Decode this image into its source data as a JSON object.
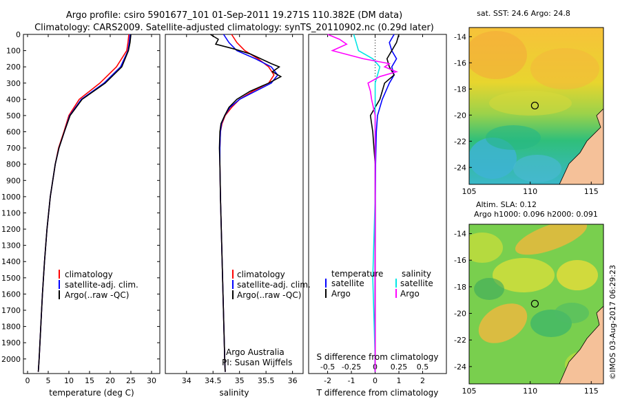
{
  "figure": {
    "title_line1": "Argo profile: csiro 5901677_101 01-Sep-2011 19.271S 110.382E (DM data)",
    "title_line2": "Climatology: CARS2009. Satellite-adjusted climatology: synTS_20110902.nc (0.29d later)",
    "credit": "©IMOS 03-Aug-2017 06:29:23",
    "institution": "Argo Australia",
    "pi": "PI: Susan Wijffels"
  },
  "colors": {
    "climatology": "#ff0000",
    "satellite": "#0000ff",
    "argo": "#000000",
    "sat_salinity": "#00e5e5",
    "argo_salinity": "#ff00ff",
    "land": "#f5c199"
  },
  "chart_data": [
    {
      "id": "temperature",
      "type": "line",
      "xlabel": "temperature (deg C)",
      "ylabel": "",
      "xlim": [
        -1,
        32
      ],
      "ylim": [
        2090,
        0
      ],
      "xticks": [
        0,
        5,
        10,
        15,
        20,
        25,
        30
      ],
      "yticks": [
        0,
        100,
        200,
        300,
        400,
        500,
        600,
        700,
        800,
        900,
        1000,
        1100,
        1200,
        1300,
        1400,
        1500,
        1600,
        1700,
        1800,
        1900,
        2000
      ],
      "legend": [
        "climatology",
        "satellite-adj. clim.",
        "Argo(..raw -QC)"
      ],
      "series": [
        {
          "name": "climatology",
          "depth": [
            0,
            50,
            100,
            200,
            300,
            400,
            500,
            600,
            700,
            800,
            1000,
            1200,
            1400,
            1600,
            1800,
            2000,
            2080
          ],
          "values": [
            24.5,
            24.3,
            24.0,
            21.5,
            17.5,
            12.5,
            10.0,
            8.8,
            7.5,
            6.7,
            5.5,
            4.7,
            4.1,
            3.6,
            3.2,
            2.8,
            2.6
          ]
        },
        {
          "name": "satellite-adj. clim.",
          "depth": [
            0,
            50,
            100,
            200,
            300,
            400,
            500,
            600,
            700,
            800,
            1000,
            1200,
            1400,
            1600,
            1800,
            2000,
            2080
          ],
          "values": [
            24.8,
            24.6,
            24.3,
            22.5,
            18.5,
            13.0,
            10.2,
            8.9,
            7.6,
            6.7,
            5.5,
            4.7,
            4.1,
            3.6,
            3.2,
            2.8,
            2.6
          ]
        },
        {
          "name": "Argo(..raw -QC)",
          "depth": [
            0,
            50,
            100,
            200,
            300,
            400,
            500,
            600,
            700,
            800,
            1000,
            1200,
            1400,
            1600,
            1800,
            2000,
            2080
          ],
          "values": [
            25.0,
            24.8,
            24.4,
            22.8,
            18.8,
            13.2,
            10.3,
            8.9,
            7.6,
            6.7,
            5.5,
            4.7,
            4.1,
            3.6,
            3.2,
            2.8,
            2.6
          ]
        }
      ]
    },
    {
      "id": "salinity",
      "type": "line",
      "xlabel": "salinity",
      "xlim": [
        33.6,
        36.2
      ],
      "ylim": [
        2090,
        0
      ],
      "xticks": [
        34,
        34.5,
        35,
        35.5,
        36
      ],
      "legend": [
        "climatology",
        "satellite-adj. clim.",
        "Argo(..raw -QC)"
      ],
      "series": [
        {
          "name": "climatology",
          "depth": [
            0,
            50,
            100,
            150,
            200,
            250,
            300,
            350,
            400,
            450,
            500,
            550,
            600,
            700,
            800,
            1000,
            1500,
            2000,
            2080
          ],
          "values": [
            34.85,
            34.95,
            35.1,
            35.35,
            35.55,
            35.65,
            35.55,
            35.25,
            35.0,
            34.85,
            34.73,
            34.67,
            34.64,
            34.63,
            34.63,
            34.64,
            34.68,
            34.72,
            34.73
          ]
        },
        {
          "name": "satellite-adj. clim.",
          "depth": [
            0,
            50,
            100,
            150,
            200,
            250,
            300,
            350,
            400,
            450,
            500,
            550,
            600,
            700,
            800,
            1000,
            1500,
            2000,
            2080
          ],
          "values": [
            34.7,
            34.8,
            34.95,
            35.3,
            35.6,
            35.72,
            35.6,
            35.3,
            35.0,
            34.82,
            34.72,
            34.66,
            34.64,
            34.63,
            34.63,
            34.64,
            34.68,
            34.72,
            34.73
          ]
        },
        {
          "name": "Argo(..raw -QC)",
          "depth": [
            0,
            30,
            60,
            90,
            120,
            150,
            180,
            200,
            230,
            260,
            300,
            350,
            400,
            450,
            500,
            550,
            600,
            700,
            800,
            1000,
            1500,
            2000,
            2080
          ],
          "values": [
            34.45,
            34.6,
            34.55,
            34.9,
            35.2,
            35.4,
            35.6,
            35.75,
            35.62,
            35.78,
            35.55,
            35.2,
            34.95,
            34.8,
            34.72,
            34.65,
            34.63,
            34.62,
            34.63,
            34.64,
            34.68,
            34.72,
            34.73
          ]
        }
      ]
    },
    {
      "id": "difference",
      "type": "line",
      "xlabel": "T difference from climatology",
      "xlabel_top": "S difference from climatology",
      "xlim": [
        -2.8,
        3.0
      ],
      "ylim": [
        2090,
        0
      ],
      "xticks": [
        -2,
        -1,
        0,
        1,
        2
      ],
      "s_tick_labels": [
        "-0.5",
        "-0.25",
        "0",
        "0.25",
        "0.5"
      ],
      "s_tick_positions": [
        -2,
        -1,
        0,
        1,
        2
      ],
      "legend": {
        "temperature_heading": "temperature",
        "salinity_heading": "salinity",
        "items": [
          "satellite",
          "Argo",
          "satellite",
          "Argo"
        ]
      },
      "series": [
        {
          "name": "T satellite",
          "depth": [
            0,
            50,
            100,
            150,
            200,
            250,
            300,
            400,
            500,
            600,
            800,
            1000,
            1500,
            2000,
            2080
          ],
          "values": [
            0.8,
            0.6,
            0.7,
            0.9,
            0.7,
            0.8,
            0.6,
            0.3,
            0.1,
            0.05,
            0.02,
            0.01,
            0.0,
            0.0,
            0.0
          ]
        },
        {
          "name": "T Argo",
          "depth": [
            0,
            50,
            100,
            150,
            200,
            250,
            300,
            400,
            500,
            600,
            700,
            800,
            1000,
            1500,
            2000,
            2080
          ],
          "values": [
            1.0,
            0.9,
            0.7,
            0.5,
            0.6,
            0.8,
            0.4,
            0.2,
            -0.2,
            -0.1,
            -0.05,
            0.0,
            0.0,
            0.0,
            0.0,
            0.0
          ]
        },
        {
          "name": "S satellite",
          "depth": [
            0,
            50,
            100,
            150,
            200,
            250,
            300,
            400,
            500,
            600,
            800,
            1000,
            1500,
            2000,
            2080
          ],
          "values": [
            -0.9,
            -0.8,
            -0.7,
            -0.1,
            0.2,
            0.1,
            0.0,
            0.0,
            0.0,
            0.0,
            0.0,
            0.0,
            -0.1,
            0.0,
            0.0
          ]
        },
        {
          "name": "S Argo",
          "depth": [
            0,
            30,
            60,
            100,
            150,
            180,
            200,
            230,
            260,
            300,
            350,
            400,
            500,
            600,
            800,
            1000,
            1500,
            2000,
            2080
          ],
          "values": [
            -2.0,
            -1.5,
            -1.2,
            -1.8,
            -0.5,
            0.6,
            0.4,
            0.9,
            0.2,
            -0.3,
            -0.2,
            -0.15,
            0.0,
            0.0,
            0.0,
            0.0,
            0.0,
            0.0,
            0.0
          ]
        }
      ]
    },
    {
      "id": "sst_map",
      "type": "heatmap",
      "title": "sat. SST: 24.6 Argo: 24.8",
      "xticks": [
        105,
        110,
        115
      ],
      "yticks": [
        -14,
        -16,
        -18,
        -20,
        -22,
        -24
      ],
      "xlim": [
        105,
        116
      ],
      "ylim": [
        -25.3,
        -13.3
      ],
      "marker": {
        "lon": 110.382,
        "lat": -19.271
      }
    },
    {
      "id": "sla_map",
      "type": "heatmap",
      "title_line1": "Altim. SLA: 0.12",
      "title_line2": "Argo h1000: 0.096 h2000: 0.091",
      "xticks": [
        105,
        110,
        115
      ],
      "yticks": [
        -14,
        -16,
        -18,
        -20,
        -22,
        -24
      ],
      "xlim": [
        105,
        116
      ],
      "ylim": [
        -25.3,
        -13.3
      ],
      "marker": {
        "lon": 110.382,
        "lat": -19.271
      }
    }
  ]
}
